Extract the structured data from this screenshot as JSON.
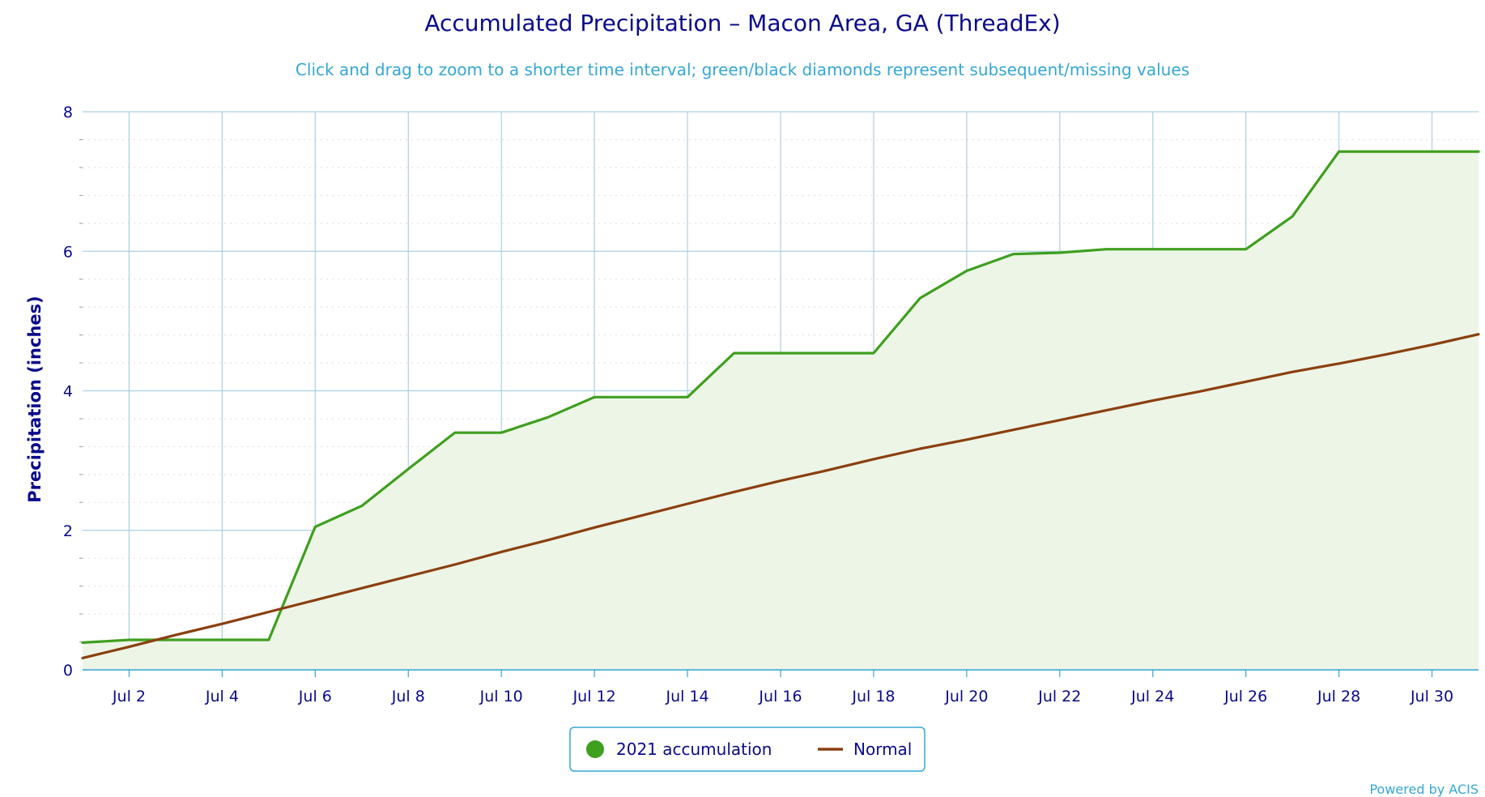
{
  "chart_data": {
    "type": "line",
    "title": "Accumulated Precipitation – Macon Area, GA (ThreadEx)",
    "subtitle": "Click and drag to zoom to a shorter time interval; green/black diamonds represent subsequent/missing values",
    "ylabel": "Precipitation (inches)",
    "xlabel": "",
    "xlim": [
      1,
      31
    ],
    "ylim": [
      0,
      8
    ],
    "x_ticks": [
      {
        "value": 2,
        "label": "Jul 2"
      },
      {
        "value": 4,
        "label": "Jul 4"
      },
      {
        "value": 6,
        "label": "Jul 6"
      },
      {
        "value": 8,
        "label": "Jul 8"
      },
      {
        "value": 10,
        "label": "Jul 10"
      },
      {
        "value": 12,
        "label": "Jul 12"
      },
      {
        "value": 14,
        "label": "Jul 14"
      },
      {
        "value": 16,
        "label": "Jul 16"
      },
      {
        "value": 18,
        "label": "Jul 18"
      },
      {
        "value": 20,
        "label": "Jul 20"
      },
      {
        "value": 22,
        "label": "Jul 22"
      },
      {
        "value": 24,
        "label": "Jul 24"
      },
      {
        "value": 26,
        "label": "Jul 26"
      },
      {
        "value": 28,
        "label": "Jul 28"
      },
      {
        "value": 30,
        "label": "Jul 30"
      }
    ],
    "y_ticks": [
      0,
      2,
      4,
      6,
      8
    ],
    "grid": true,
    "legend_position": "bottom-center",
    "series": [
      {
        "name": "2021 accumulation",
        "color": "#3f9f1f",
        "fill": "#edf5e6",
        "x": [
          1,
          2,
          3,
          4,
          5,
          6,
          7,
          8,
          9,
          10,
          11,
          12,
          13,
          14,
          15,
          16,
          17,
          18,
          19,
          20,
          21,
          22,
          23,
          24,
          25,
          26,
          27,
          28,
          29,
          30,
          31
        ],
        "y": [
          0.39,
          0.43,
          0.43,
          0.43,
          0.43,
          2.05,
          2.35,
          2.88,
          3.4,
          3.4,
          3.62,
          3.91,
          3.91,
          3.91,
          4.54,
          4.54,
          4.54,
          4.54,
          5.33,
          5.72,
          5.96,
          5.98,
          6.03,
          6.03,
          6.03,
          6.03,
          6.5,
          7.43,
          7.43,
          7.43,
          7.43
        ]
      },
      {
        "name": "Normal",
        "color": "#8b3f10",
        "x": [
          1,
          2,
          3,
          4,
          5,
          6,
          7,
          8,
          9,
          10,
          11,
          12,
          13,
          14,
          15,
          16,
          17,
          18,
          19,
          20,
          21,
          22,
          23,
          24,
          25,
          26,
          27,
          28,
          29,
          30,
          31
        ],
        "y": [
          0.17,
          0.33,
          0.5,
          0.66,
          0.83,
          1.0,
          1.17,
          1.34,
          1.51,
          1.69,
          1.86,
          2.04,
          2.21,
          2.38,
          2.55,
          2.71,
          2.86,
          3.02,
          3.17,
          3.3,
          3.44,
          3.58,
          3.72,
          3.86,
          3.99,
          4.13,
          4.27,
          4.39,
          4.52,
          4.66,
          4.81
        ]
      }
    ]
  },
  "credits": "Powered by ACIS"
}
